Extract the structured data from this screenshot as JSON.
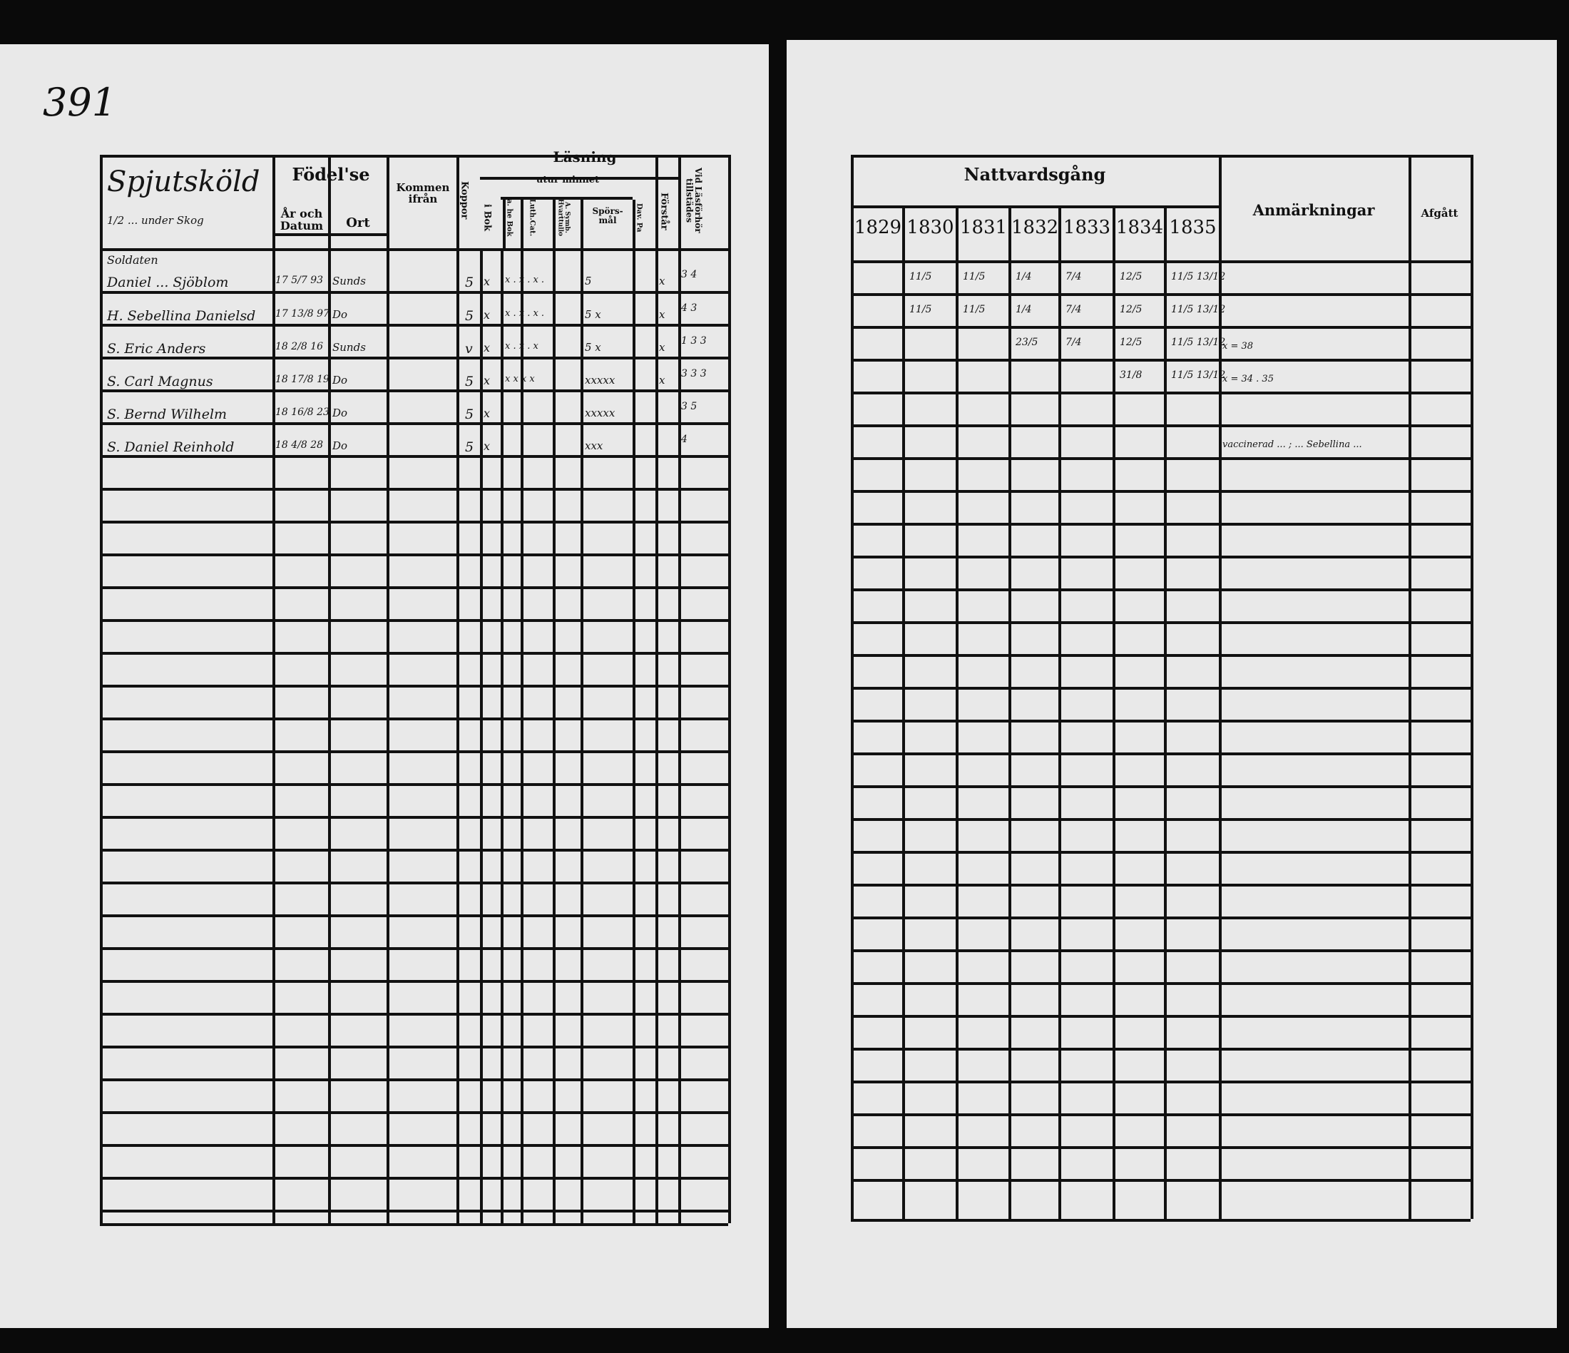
{
  "page_number": "391",
  "left_page": {
    "title_handwritten": "Spjutsköld",
    "title_sub_handwritten": "1/2 ... under Skog",
    "headers": {
      "fodelse": "Födel'se",
      "ar_och_datum": "År och Datum",
      "ort": "Ort",
      "kommen_ifran": "Kommen ifrån",
      "koppor": "Koppor",
      "lasning": "Läsning",
      "i_bok": "i Bok",
      "utur_minnet": "utur minnet",
      "a_hela_bok": "a. he Bok",
      "luth_cat": "Luth.Cat.",
      "forklaring": "A. Symb. Hvarttullo",
      "spors_mal": "Spörs-mål",
      "dav_pa": "Dav. Pa",
      "forstar": "Förstår",
      "vid_ladforhor": "Vid Läsförhör tillstädes"
    },
    "rows": [
      {
        "name": "Soldaten",
        "birth": "",
        "place": "",
        "koppor": "",
        "bok": "",
        "marks": "",
        "spors": "",
        "forstar": "",
        "ladforhor": ""
      },
      {
        "name": "Daniel ... Sjöblom",
        "birth": "17 5/7 93",
        "place": "Sunds",
        "koppor": "5",
        "bok": "x",
        "marks": "x . x . x .",
        "spors": "5",
        "forstar": "x",
        "ladforhor": "3 4"
      },
      {
        "name": "H. Sebellina Danielsd",
        "birth": "17 13/8 97",
        "place": "Do",
        "koppor": "5",
        "bok": "x",
        "marks": "x . x . x .",
        "spors": "5 x",
        "forstar": "x",
        "ladforhor": "4 3"
      },
      {
        "name": "S. Eric Anders",
        "birth": "18 2/8 16",
        "place": "Sunds",
        "koppor": "v",
        "bok": "x",
        "marks": "x . x . x",
        "spors": "5 x",
        "forstar": "x",
        "ladforhor": "1 3 3"
      },
      {
        "name": "S. Carl Magnus",
        "birth": "18 17/8 19",
        "place": "Do",
        "koppor": "5",
        "bok": "x",
        "marks": "x x x x",
        "spors": "xxxxx",
        "forstar": "x",
        "ladforhor": "3 3 3"
      },
      {
        "name": "S. Bernd Wilhelm",
        "birth": "18 16/8 23",
        "place": "Do",
        "koppor": "5",
        "bok": "x",
        "marks": "",
        "spors": "xxxxx",
        "forstar": "",
        "ladforhor": "3 5"
      },
      {
        "name": "S. Daniel Reinhold",
        "birth": "18 4/8 28",
        "place": "Do",
        "koppor": "5",
        "bok": "x",
        "marks": "",
        "spors": "xxx",
        "forstar": "",
        "ladforhor": "4"
      }
    ]
  },
  "right_page": {
    "headers": {
      "nattvardsgang": "Nattvardsgång",
      "years": [
        "1829",
        "1830",
        "1831",
        "1832",
        "1833",
        "1834",
        "1835"
      ],
      "anmarkningar": "Anmärkningar",
      "afgatt": "Afgått"
    },
    "rows": [
      {
        "dates": [
          "",
          "11/5",
          "11/5",
          "1/4",
          "7/4",
          "12/5",
          "11/5 13/12"
        ],
        "note": ""
      },
      {
        "dates": [
          "",
          "11/5",
          "11/5",
          "1/4",
          "7/4",
          "12/5",
          "11/5 13/12"
        ],
        "note": ""
      },
      {
        "dates": [
          "",
          "",
          "",
          "23/5",
          "7/4",
          "12/5",
          "11/5 13/12"
        ],
        "note": "x = 38"
      },
      {
        "dates": [
          "",
          "",
          "",
          "",
          "",
          "31/8",
          "11/5 13/12"
        ],
        "note": "x = 34 . 35"
      },
      {
        "dates": [
          "",
          "",
          "",
          "",
          "",
          "",
          ""
        ],
        "note": ""
      },
      {
        "dates": [
          "",
          "",
          "",
          "",
          "",
          "",
          ""
        ],
        "note": "vaccinerad ... ; ... Sebellina ..."
      }
    ]
  }
}
